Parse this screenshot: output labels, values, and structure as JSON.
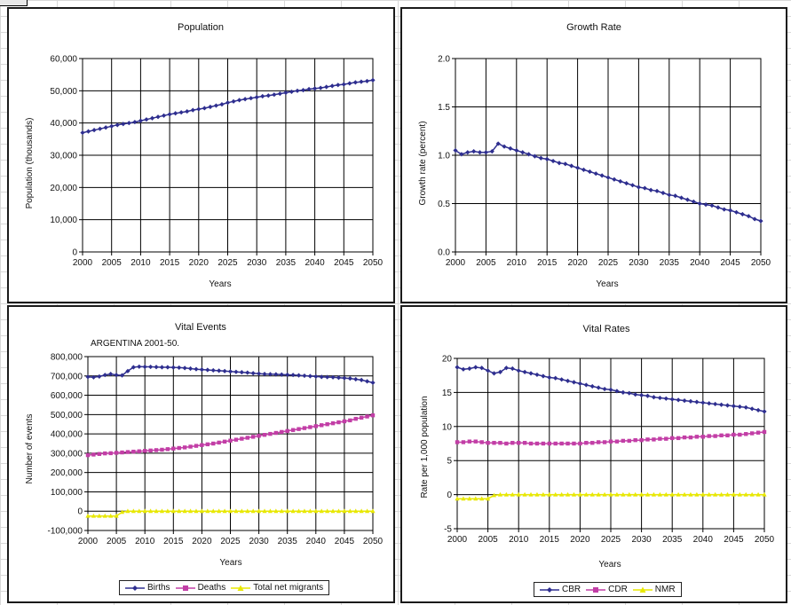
{
  "chart_data": [
    {
      "type": "line",
      "title": "Population",
      "xlabel": "Years",
      "ylabel": "Population (thousands)",
      "xlim": [
        2000,
        2050
      ],
      "ylim": [
        0,
        60000
      ],
      "xticks": [
        "2000",
        "2005",
        "2010",
        "2015",
        "2020",
        "2025",
        "2030",
        "2035",
        "2040",
        "2045",
        "2050"
      ],
      "yticks": [
        "0",
        "10,000",
        "20,000",
        "30,000",
        "40,000",
        "50,000",
        "60,000"
      ],
      "grid": true,
      "series": [
        {
          "values": [
            37000,
            37400,
            37800,
            38200,
            38600,
            39000,
            39400,
            39700,
            40000,
            40300,
            40700,
            41100,
            41500,
            41900,
            42300,
            42700,
            43000,
            43300,
            43600,
            44000,
            44300,
            44600,
            45000,
            45400,
            45800,
            46300,
            46700,
            47100,
            47400,
            47700,
            48000,
            48300,
            48500,
            48800,
            49100,
            49400,
            49700,
            50000,
            50200,
            50500,
            50700,
            50900,
            51200,
            51500,
            51800,
            52000,
            52300,
            52600,
            52800,
            53000,
            53300
          ]
        }
      ]
    },
    {
      "type": "line",
      "title": "Growth Rate",
      "xlabel": "Years",
      "ylabel": "Growth rate (percent)",
      "xlim": [
        2000,
        2050
      ],
      "ylim": [
        0,
        2.0
      ],
      "xticks": [
        "2000",
        "2005",
        "2010",
        "2015",
        "2020",
        "2025",
        "2030",
        "2035",
        "2040",
        "2045",
        "2050"
      ],
      "yticks": [
        "0.0",
        "0.5",
        "1.0",
        "1.5",
        "2.0"
      ],
      "grid": true,
      "series": [
        {
          "values": [
            1.05,
            1.01,
            1.03,
            1.04,
            1.03,
            1.03,
            1.04,
            1.12,
            1.09,
            1.07,
            1.05,
            1.03,
            1.01,
            0.99,
            0.97,
            0.96,
            0.94,
            0.92,
            0.91,
            0.89,
            0.87,
            0.85,
            0.83,
            0.81,
            0.79,
            0.77,
            0.75,
            0.73,
            0.71,
            0.69,
            0.67,
            0.66,
            0.64,
            0.63,
            0.61,
            0.59,
            0.58,
            0.56,
            0.54,
            0.52,
            0.5,
            0.49,
            0.48,
            0.46,
            0.44,
            0.43,
            0.41,
            0.39,
            0.37,
            0.34,
            0.32
          ]
        }
      ]
    },
    {
      "type": "line",
      "title": "Vital Events",
      "subtitle": "ARGENTINA 2001-50.",
      "xlabel": "Years",
      "ylabel": "Number of events",
      "xlim": [
        2000,
        2050
      ],
      "ylim": [
        -100000,
        800000
      ],
      "xticks": [
        "2000",
        "2005",
        "2010",
        "2015",
        "2020",
        "2025",
        "2030",
        "2035",
        "2040",
        "2045",
        "2050"
      ],
      "yticks": [
        "-100,000",
        "0",
        "100,000",
        "200,000",
        "300,000",
        "400,000",
        "500,000",
        "600,000",
        "700,000",
        "800,000"
      ],
      "grid": true,
      "legend": "bottom",
      "series": [
        {
          "name": "Births",
          "values": [
            695000,
            693000,
            697000,
            705000,
            710000,
            705000,
            703000,
            725000,
            745000,
            748000,
            747000,
            747000,
            746000,
            745000,
            745000,
            744000,
            743000,
            741000,
            738000,
            735000,
            733000,
            731000,
            729000,
            727000,
            725000,
            723000,
            721000,
            719000,
            717000,
            714000,
            712000,
            710000,
            709000,
            708000,
            707000,
            706000,
            705000,
            703000,
            701000,
            699000,
            697000,
            695000,
            694000,
            693000,
            691000,
            689000,
            687000,
            683000,
            679000,
            672000,
            665000
          ]
        },
        {
          "name": "Deaths",
          "values": [
            290000,
            293000,
            296000,
            299000,
            300000,
            302000,
            304000,
            306000,
            308000,
            310000,
            312000,
            314000,
            316000,
            318000,
            321000,
            324000,
            327000,
            330000,
            334000,
            338000,
            342000,
            346000,
            350000,
            355000,
            360000,
            365000,
            370000,
            375000,
            380000,
            385000,
            390000,
            395000,
            400000,
            405000,
            410000,
            415000,
            420000,
            425000,
            430000,
            435000,
            440000,
            445000,
            450000,
            455000,
            460000,
            465000,
            470000,
            478000,
            484000,
            490000,
            496000
          ]
        },
        {
          "name": "Total net migrants",
          "values": [
            -25000,
            -25000,
            -25000,
            -25000,
            -25000,
            -25000,
            -5000,
            0,
            0,
            0,
            0,
            0,
            0,
            0,
            0,
            0,
            0,
            0,
            0,
            0,
            0,
            0,
            0,
            0,
            0,
            0,
            0,
            0,
            0,
            0,
            0,
            0,
            0,
            0,
            0,
            0,
            0,
            0,
            0,
            0,
            0,
            0,
            0,
            0,
            0,
            0,
            0,
            0,
            0,
            0,
            0
          ]
        }
      ]
    },
    {
      "type": "line",
      "title": "Vital Rates",
      "xlabel": "Years",
      "ylabel": "Rate per 1,000 population",
      "xlim": [
        2000,
        2050
      ],
      "ylim": [
        -5,
        20
      ],
      "xticks": [
        "2000",
        "2005",
        "2010",
        "2015",
        "2020",
        "2025",
        "2030",
        "2035",
        "2040",
        "2045",
        "2050"
      ],
      "yticks": [
        "-5",
        "0",
        "5",
        "10",
        "15",
        "20"
      ],
      "grid": true,
      "legend": "bottom",
      "series": [
        {
          "name": "CBR",
          "values": [
            18.7,
            18.4,
            18.5,
            18.7,
            18.6,
            18.2,
            17.8,
            18.0,
            18.6,
            18.5,
            18.2,
            18.0,
            17.8,
            17.6,
            17.4,
            17.2,
            17.1,
            16.9,
            16.7,
            16.5,
            16.3,
            16.1,
            15.9,
            15.7,
            15.5,
            15.4,
            15.2,
            15.0,
            14.9,
            14.7,
            14.6,
            14.5,
            14.3,
            14.2,
            14.1,
            14.0,
            13.9,
            13.8,
            13.7,
            13.6,
            13.5,
            13.4,
            13.3,
            13.2,
            13.1,
            13.0,
            12.9,
            12.8,
            12.6,
            12.4,
            12.2
          ]
        },
        {
          "name": "CDR",
          "values": [
            7.7,
            7.7,
            7.8,
            7.8,
            7.7,
            7.6,
            7.6,
            7.6,
            7.5,
            7.6,
            7.6,
            7.6,
            7.5,
            7.5,
            7.5,
            7.5,
            7.5,
            7.5,
            7.5,
            7.5,
            7.5,
            7.6,
            7.6,
            7.7,
            7.7,
            7.8,
            7.8,
            7.9,
            7.9,
            8.0,
            8.0,
            8.1,
            8.1,
            8.2,
            8.2,
            8.3,
            8.3,
            8.4,
            8.4,
            8.5,
            8.5,
            8.6,
            8.6,
            8.7,
            8.7,
            8.8,
            8.8,
            8.9,
            9.0,
            9.1,
            9.2
          ]
        },
        {
          "name": "NMR",
          "values": [
            -0.6,
            -0.6,
            -0.6,
            -0.6,
            -0.6,
            -0.6,
            -0.1,
            0,
            0,
            0,
            0,
            0,
            0,
            0,
            0,
            0,
            0,
            0,
            0,
            0,
            0,
            0,
            0,
            0,
            0,
            0,
            0,
            0,
            0,
            0,
            0,
            0,
            0,
            0,
            0,
            0,
            0,
            0,
            0,
            0,
            0,
            0,
            0,
            0,
            0,
            0,
            0,
            0,
            0,
            0,
            0
          ]
        }
      ]
    }
  ],
  "colors": {
    "births": "#2e2e8f",
    "deaths": "#c23ea6",
    "migrants": "#e8e800",
    "cbr": "#2e2e8f",
    "cdr": "#c23ea6",
    "nmr": "#e8e800"
  }
}
